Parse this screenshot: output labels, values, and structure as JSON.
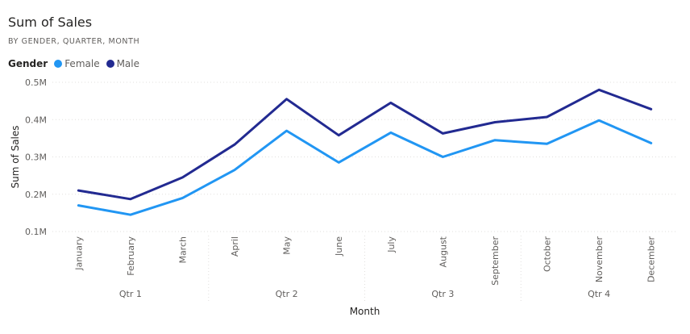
{
  "chart_data": {
    "type": "line",
    "title": "Sum of Sales",
    "subtitle": "BY GENDER, QUARTER, MONTH",
    "legend_title": "Gender",
    "legend_placement": "top-left",
    "xlabel": "Month",
    "ylabel": "Sum of Sales",
    "ylim": [
      0.1,
      0.5
    ],
    "yticks": [
      {
        "value": 0.5,
        "label": "0.5M"
      },
      {
        "value": 0.4,
        "label": "0.4M"
      },
      {
        "value": 0.3,
        "label": "0.3M"
      },
      {
        "value": 0.2,
        "label": "0.2M"
      },
      {
        "value": 0.1,
        "label": "0.1M"
      }
    ],
    "grid": true,
    "categories": [
      "January",
      "February",
      "March",
      "April",
      "May",
      "June",
      "July",
      "August",
      "September",
      "October",
      "November",
      "December"
    ],
    "groups": [
      {
        "label": "Qtr 1",
        "count": 3
      },
      {
        "label": "Qtr 2",
        "count": 3
      },
      {
        "label": "Qtr 3",
        "count": 3
      },
      {
        "label": "Qtr 4",
        "count": 3
      }
    ],
    "series": [
      {
        "name": "Female",
        "color": "#2196f3",
        "values": [
          0.17,
          0.145,
          0.19,
          0.265,
          0.37,
          0.285,
          0.365,
          0.3,
          0.345,
          0.335,
          0.398,
          0.337
        ]
      },
      {
        "name": "Male",
        "color": "#222a91",
        "values": [
          0.21,
          0.187,
          0.245,
          0.333,
          0.455,
          0.358,
          0.445,
          0.363,
          0.393,
          0.407,
          0.48,
          0.428
        ]
      }
    ]
  }
}
